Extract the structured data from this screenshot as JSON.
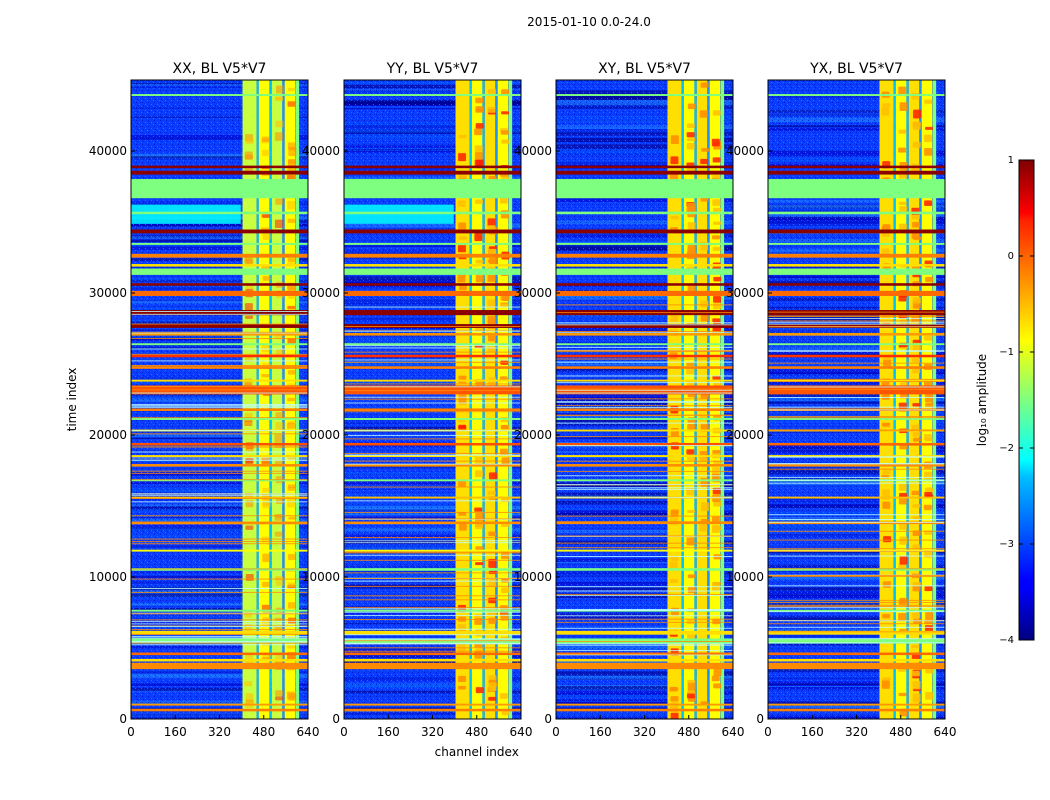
{
  "suptitle": "2015-01-10 0.0-24.0",
  "chart_data": [
    {
      "type": "heatmap",
      "title": "XX, BL V5*V7",
      "xlabel": "",
      "ylabel": "time index",
      "xlim": [
        0,
        640
      ],
      "ylim": [
        0,
        45000
      ],
      "xticks": [
        0,
        160,
        320,
        480,
        640
      ],
      "yticks": [
        0,
        10000,
        20000,
        30000,
        40000
      ],
      "show_yticklabels": true
    },
    {
      "type": "heatmap",
      "title": "YY, BL V5*V7",
      "xlabel": "channel index",
      "ylabel": "",
      "xlim": [
        0,
        640
      ],
      "ylim": [
        0,
        45000
      ],
      "xticks": [
        0,
        160,
        320,
        480,
        640
      ],
      "yticks": [
        0,
        10000,
        20000,
        30000,
        40000
      ],
      "show_yticklabels": true
    },
    {
      "type": "heatmap",
      "title": "XY, BL V5*V7",
      "xlabel": "",
      "ylabel": "",
      "xlim": [
        0,
        640
      ],
      "ylim": [
        0,
        45000
      ],
      "xticks": [
        0,
        160,
        320,
        480,
        640
      ],
      "yticks": [
        0,
        10000,
        20000,
        30000,
        40000
      ],
      "show_yticklabels": true
    },
    {
      "type": "heatmap",
      "title": "YX, BL V5*V7",
      "xlabel": "",
      "ylabel": "",
      "xlim": [
        0,
        640
      ],
      "ylim": [
        0,
        45000
      ],
      "xticks": [
        0,
        160,
        320,
        480,
        640
      ],
      "yticks": [
        0,
        10000,
        20000,
        30000,
        40000
      ],
      "show_yticklabels": true
    }
  ],
  "colorbar": {
    "label": "log₁₀ amplitude",
    "range": [
      -4,
      1
    ],
    "ticks": [
      -4,
      -3,
      -2,
      -1,
      0,
      1
    ],
    "tick_labels": [
      "−4",
      "−3",
      "−2",
      "−1",
      "0",
      "1"
    ]
  }
}
